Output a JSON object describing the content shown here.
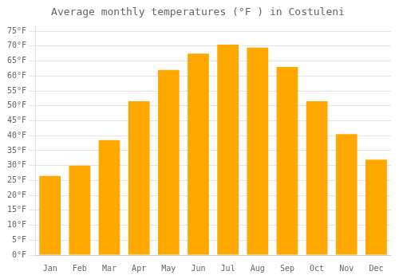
{
  "chart_data": {
    "type": "bar",
    "title": "Average monthly temperatures (°F ) in Costuleni",
    "categories": [
      "Jan",
      "Feb",
      "Mar",
      "Apr",
      "May",
      "Jun",
      "Jul",
      "Aug",
      "Sep",
      "Oct",
      "Nov",
      "Dec"
    ],
    "values": [
      26.5,
      30.0,
      38.5,
      51.5,
      62.0,
      67.5,
      70.5,
      69.5,
      63.0,
      51.5,
      40.5,
      32.0
    ],
    "color": "#FFA800",
    "ylim": [
      0,
      77
    ],
    "yticks": [
      {
        "value": 0,
        "label": "0°F"
      },
      {
        "value": 5,
        "label": "5°F"
      },
      {
        "value": 10,
        "label": "10°F"
      },
      {
        "value": 15,
        "label": "15°F"
      },
      {
        "value": 20,
        "label": "20°F"
      },
      {
        "value": 25,
        "label": "25°F"
      },
      {
        "value": 30,
        "label": "30°F"
      },
      {
        "value": 35,
        "label": "35°F"
      },
      {
        "value": 40,
        "label": "40°F"
      },
      {
        "value": 45,
        "label": "45°F"
      },
      {
        "value": 50,
        "label": "50°F"
      },
      {
        "value": 55,
        "label": "55°F"
      },
      {
        "value": 60,
        "label": "60°F"
      },
      {
        "value": 65,
        "label": "65°F"
      },
      {
        "value": 70,
        "label": "70°F"
      },
      {
        "value": 75,
        "label": "75°F"
      }
    ],
    "grid": true
  }
}
